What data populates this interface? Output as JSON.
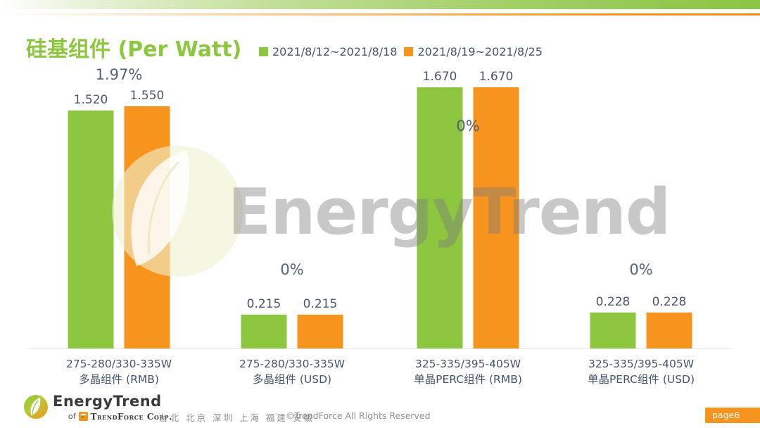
{
  "slide": {
    "watermark_text": "EnergyTrend",
    "page_badge": "page6",
    "footer": {
      "brand": "EnergyTrend",
      "brand_sub_prefix": "of",
      "brand_sub": "TrendForce Corp.",
      "locations": "台北 北京 深圳 上海 福建 安徽",
      "copyright": "©TrendForce All Rights Reserved"
    }
  },
  "colors": {
    "series1_green": "#8dc63f",
    "series2_orange": "#f7941e",
    "title_green": "#8dc63f",
    "label_slate": "#44546a",
    "badge_orange": "#f7941e"
  },
  "chart_data": {
    "type": "bar",
    "title": "硅基组件 (Per Watt)",
    "legend_position": "top",
    "grid": false,
    "ylim": [
      0,
      1.8
    ],
    "categories": [
      "275-280/330-335W 多晶组件 (RMB)",
      "275-280/330-335W 多晶组件 (USD)",
      "325-335/395-405W 单晶PERC组件 (RMB)",
      "325-335/395-405W 单晶PERC组件 (USD)"
    ],
    "categories_lines": [
      [
        "275-280/330-335W",
        "多晶组件 (RMB)"
      ],
      [
        "275-280/330-335W",
        "多晶组件 (USD)"
      ],
      [
        "325-335/395-405W",
        "单晶PERC组件 (RMB)"
      ],
      [
        "325-335/395-405W",
        "单晶PERC组件 (USD)"
      ]
    ],
    "series": [
      {
        "name": "2021/8/12~2021/8/18",
        "color": "#8dc63f",
        "values": [
          1.52,
          0.215,
          1.67,
          0.228
        ]
      },
      {
        "name": "2021/8/19~2021/8/25",
        "color": "#f7941e",
        "values": [
          1.55,
          0.215,
          1.67,
          0.228
        ]
      }
    ],
    "value_labels": [
      [
        "1.520",
        "1.550"
      ],
      [
        "0.215",
        "0.215"
      ],
      [
        "1.670",
        "1.670"
      ],
      [
        "0.228",
        "0.228"
      ]
    ],
    "change_labels": [
      "1.97%",
      "0%",
      "0%",
      "0%"
    ]
  }
}
